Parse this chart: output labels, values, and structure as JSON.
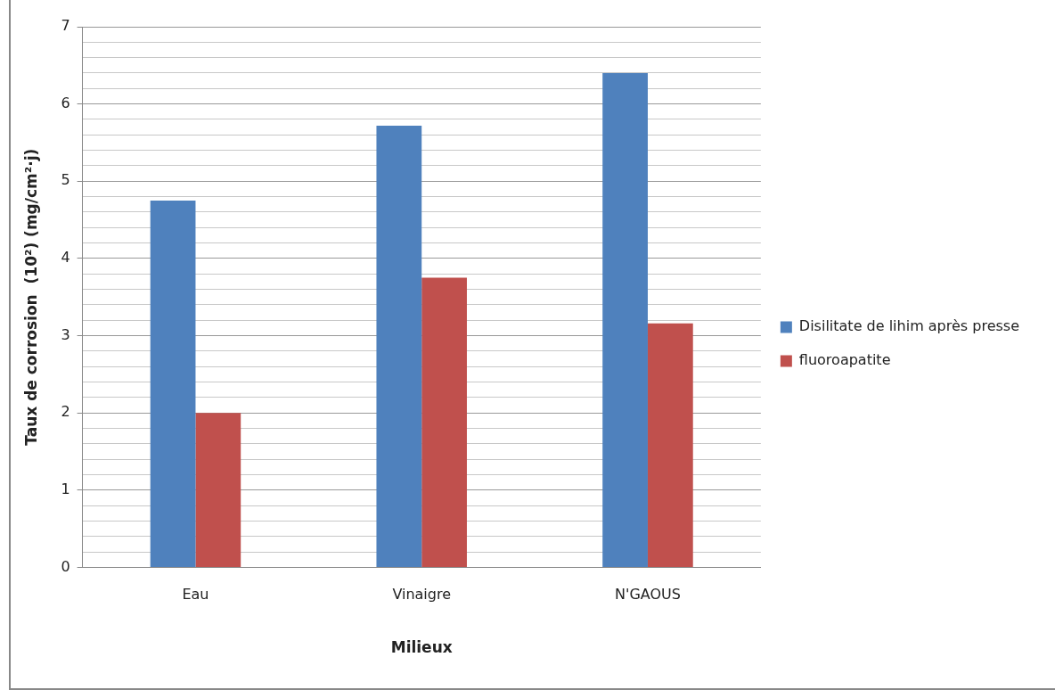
{
  "chart_data": {
    "type": "bar",
    "xlabel": "Milieux",
    "ylabel": "Taux de corrosion  (10²) (mg/cm²·j)",
    "categories": [
      "Eau",
      "Vinaigre",
      "N'GAOUS"
    ],
    "series": [
      {
        "name": "Disilitate de lihim après presse",
        "color": "#4f81bd",
        "values": [
          4.75,
          5.72,
          6.4
        ]
      },
      {
        "name": "fluoroapatite",
        "color": "#c0504d",
        "values": [
          2.0,
          3.75,
          3.16
        ]
      }
    ],
    "ylim": [
      0,
      7
    ],
    "yticks": [
      0,
      {
        "value": 0.2,
        "label": null
      },
      {
        "value": 0.4,
        "label": null
      },
      {
        "value": 0.6,
        "label": null
      },
      {
        "value": 0.8,
        "label": null
      },
      1,
      {
        "value": 1.2,
        "label": null
      },
      {
        "value": 1.4,
        "label": null
      },
      {
        "value": 1.6,
        "label": null
      },
      {
        "value": 1.8,
        "label": null
      },
      2,
      {
        "value": 2.2,
        "label": null
      },
      {
        "value": 2.4,
        "label": null
      },
      {
        "value": 2.6,
        "label": null
      },
      {
        "value": 2.8,
        "label": null
      },
      3,
      {
        "value": 3.2,
        "label": null
      },
      {
        "value": 3.4,
        "label": null
      },
      {
        "value": 3.6,
        "label": null
      },
      {
        "value": 3.8,
        "label": null
      },
      4,
      {
        "value": 4.2,
        "label": null
      },
      {
        "value": 4.4,
        "label": null
      },
      {
        "value": 4.6,
        "label": null
      },
      {
        "value": 4.8,
        "label": null
      },
      5,
      {
        "value": 5.2,
        "label": null
      },
      {
        "value": 5.4,
        "label": null
      },
      {
        "value": 5.6,
        "label": null
      },
      {
        "value": 5.8,
        "label": null
      },
      6,
      {
        "value": 6.2,
        "label": null
      },
      {
        "value": 6.4,
        "label": null
      },
      {
        "value": 6.6,
        "label": null
      },
      {
        "value": 6.8,
        "label": null
      },
      7
    ],
    "grid": "y",
    "legend": "right"
  }
}
